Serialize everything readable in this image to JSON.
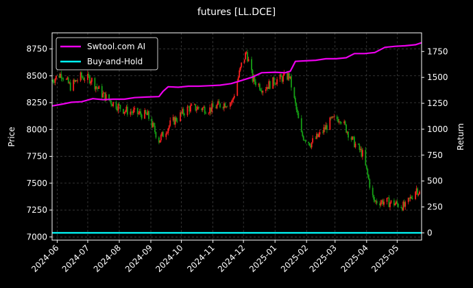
{
  "chart_data": {
    "type": "line",
    "title": "futures [LL.DCE]",
    "xlabel": "",
    "ylabel_left": "Price",
    "ylabel_right": "Return",
    "x_ticks": [
      "2024-06",
      "2024-07",
      "2024-08",
      "2024-09",
      "2024-10",
      "2024-11",
      "2024-12",
      "2025-01",
      "2025-02",
      "2025-03",
      "2025-04",
      "2025-05"
    ],
    "xlim": [
      "2024-05-27",
      "2025-05-25"
    ],
    "ylim_left": [
      6970,
      8900
    ],
    "ylim_right": [
      -70,
      1930
    ],
    "yticks_left": [
      7000,
      7250,
      7500,
      7750,
      8000,
      8250,
      8500,
      8750
    ],
    "yticks_right": [
      0,
      250,
      500,
      750,
      1000,
      1250,
      1500,
      1750
    ],
    "grid": true,
    "legend_position": "upper-left",
    "colors": {
      "strategy": "#ee00ee",
      "buy_hold": "#00ffff",
      "candle_up": "#ff2020",
      "candle_down": "#15a015"
    },
    "candle_price_path": [
      [
        "2024-05-27",
        8460
      ],
      [
        "2024-06-05",
        8520
      ],
      [
        "2024-06-14",
        8400
      ],
      [
        "2024-06-24",
        8490
      ],
      [
        "2024-07-04",
        8470
      ],
      [
        "2024-07-15",
        8330
      ],
      [
        "2024-07-25",
        8250
      ],
      [
        "2024-08-06",
        8180
      ],
      [
        "2024-08-19",
        8150
      ],
      [
        "2024-08-29",
        8130
      ],
      [
        "2024-09-09",
        7900
      ],
      [
        "2024-09-20",
        8050
      ],
      [
        "2024-10-08",
        8200
      ],
      [
        "2024-10-18",
        8200
      ],
      [
        "2024-10-29",
        8190
      ],
      [
        "2024-11-08",
        8230
      ],
      [
        "2024-11-20",
        8260
      ],
      [
        "2024-11-29",
        8600
      ],
      [
        "2024-12-04",
        8720
      ],
      [
        "2024-12-10",
        8470
      ],
      [
        "2024-12-20",
        8380
      ],
      [
        "2025-01-02",
        8460
      ],
      [
        "2025-01-15",
        8500
      ],
      [
        "2025-01-27",
        7950
      ],
      [
        "2025-02-05",
        7870
      ],
      [
        "2025-02-14",
        7950
      ],
      [
        "2025-02-25",
        8080
      ],
      [
        "2025-03-06",
        8110
      ],
      [
        "2025-03-18",
        7900
      ],
      [
        "2025-03-28",
        7770
      ],
      [
        "2025-04-08",
        7330
      ],
      [
        "2025-04-18",
        7330
      ],
      [
        "2025-04-29",
        7310
      ],
      [
        "2025-05-09",
        7280
      ],
      [
        "2025-05-20",
        7450
      ],
      [
        "2025-05-25",
        7380
      ]
    ],
    "series": [
      {
        "name": "Swtool.com AI",
        "color": "#ee00ee",
        "axis": "right",
        "points": [
          [
            "2024-05-27",
            1225
          ],
          [
            "2024-06-05",
            1240
          ],
          [
            "2024-06-15",
            1260
          ],
          [
            "2024-06-25",
            1265
          ],
          [
            "2024-07-06",
            1295
          ],
          [
            "2024-07-16",
            1285
          ],
          [
            "2024-07-26",
            1290
          ],
          [
            "2024-08-06",
            1290
          ],
          [
            "2024-08-16",
            1305
          ],
          [
            "2024-08-27",
            1310
          ],
          [
            "2024-09-09",
            1315
          ],
          [
            "2024-09-13",
            1365
          ],
          [
            "2024-09-18",
            1410
          ],
          [
            "2024-09-28",
            1405
          ],
          [
            "2024-10-08",
            1415
          ],
          [
            "2024-10-18",
            1415
          ],
          [
            "2024-10-28",
            1420
          ],
          [
            "2024-11-08",
            1425
          ],
          [
            "2024-11-19",
            1440
          ],
          [
            "2024-11-29",
            1470
          ],
          [
            "2024-12-09",
            1500
          ],
          [
            "2024-12-19",
            1545
          ],
          [
            "2025-01-01",
            1550
          ],
          [
            "2025-01-11",
            1545
          ],
          [
            "2025-01-16",
            1560
          ],
          [
            "2025-01-21",
            1655
          ],
          [
            "2025-01-31",
            1660
          ],
          [
            "2025-02-10",
            1665
          ],
          [
            "2025-02-20",
            1680
          ],
          [
            "2025-03-02",
            1680
          ],
          [
            "2025-03-12",
            1690
          ],
          [
            "2025-03-20",
            1730
          ],
          [
            "2025-03-30",
            1730
          ],
          [
            "2025-04-09",
            1740
          ],
          [
            "2025-04-19",
            1790
          ],
          [
            "2025-04-29",
            1800
          ],
          [
            "2025-05-09",
            1805
          ],
          [
            "2025-05-19",
            1815
          ],
          [
            "2025-05-25",
            1835
          ]
        ]
      },
      {
        "name": "Buy-and-Hold",
        "color": "#00ffff",
        "axis": "right",
        "points": [
          [
            "2024-05-27",
            0
          ],
          [
            "2025-05-25",
            0
          ]
        ]
      }
    ]
  }
}
